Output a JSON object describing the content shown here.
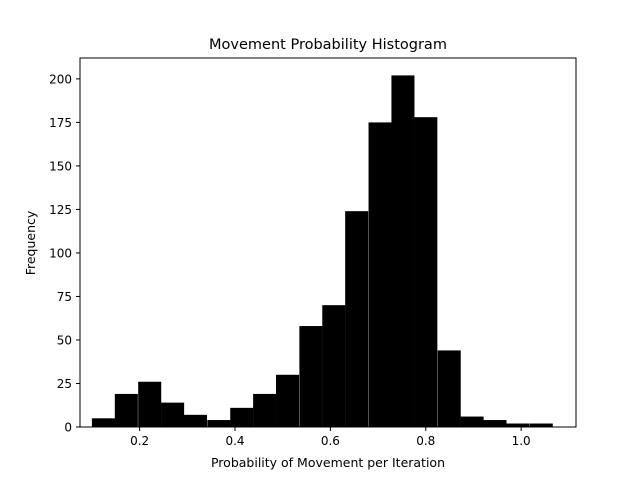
{
  "chart_data": {
    "type": "bar",
    "subtype": "histogram",
    "title": "Movement Probability Histogram",
    "xlabel": "Probability of Movement per Iteration",
    "ylabel": "Frequency",
    "xlim": [
      0.075,
      1.115
    ],
    "ylim": [
      0,
      212
    ],
    "x_ticks": [
      0.2,
      0.4,
      0.6,
      0.8,
      1.0
    ],
    "x_tick_labels": [
      "0.2",
      "0.4",
      "0.6",
      "0.8",
      "1.0"
    ],
    "y_ticks": [
      0,
      25,
      50,
      75,
      100,
      125,
      150,
      175,
      200
    ],
    "y_tick_labels": [
      "0",
      "25",
      "50",
      "75",
      "100",
      "125",
      "150",
      "175",
      "200"
    ],
    "bin_width": 0.0483,
    "bin_starts": [
      0.1,
      0.148,
      0.197,
      0.245,
      0.293,
      0.342,
      0.39,
      0.438,
      0.486,
      0.535,
      0.583,
      0.631,
      0.68,
      0.728,
      0.776,
      0.825,
      0.873,
      0.921,
      0.969,
      1.018
    ],
    "values": [
      5,
      19,
      26,
      14,
      7,
      4,
      11,
      19,
      30,
      58,
      70,
      124,
      175,
      202,
      178,
      44,
      6,
      4,
      2,
      2
    ],
    "bar_color": "#000000",
    "grid": false
  }
}
